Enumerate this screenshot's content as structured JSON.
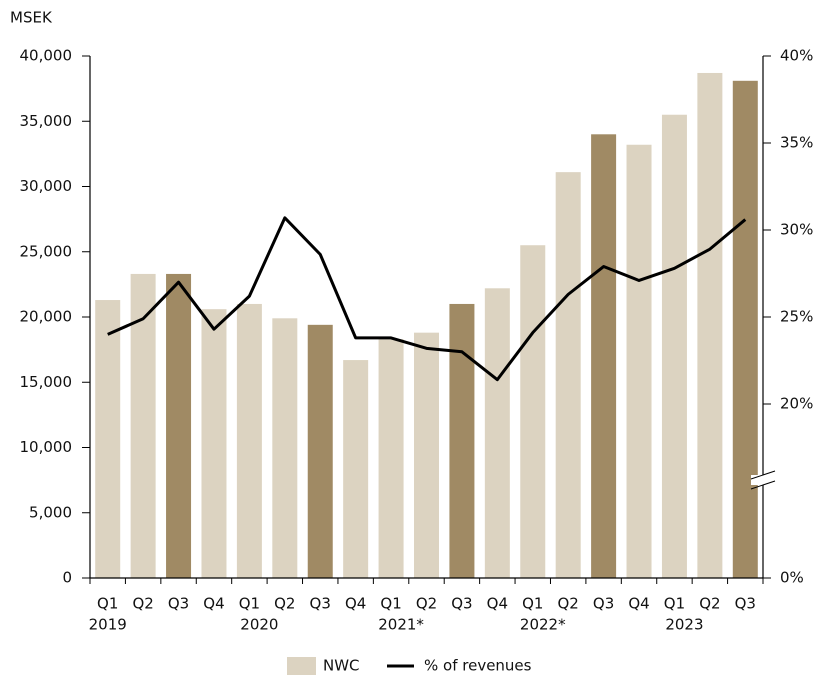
{
  "chart_data": {
    "type": "bar_line",
    "y_unit_label": "MSEK",
    "categories": [
      "Q1",
      "Q2",
      "Q3",
      "Q4",
      "Q1",
      "Q2",
      "Q3",
      "Q4",
      "Q1",
      "Q2",
      "Q3",
      "Q4",
      "Q1",
      "Q2",
      "Q3",
      "Q4",
      "Q1",
      "Q2",
      "Q3"
    ],
    "years": [
      "2019",
      null,
      null,
      null,
      "2020",
      null,
      null,
      null,
      "2021*",
      null,
      null,
      null,
      "2022*",
      null,
      null,
      null,
      "2023",
      null,
      null
    ],
    "series": [
      {
        "name": "NWC",
        "type": "bar",
        "color": "#dcd3c1",
        "colors": [
          "#dcd3c1",
          "#dcd3c1",
          "#a08a64",
          "#dcd3c1",
          "#dcd3c1",
          "#dcd3c1",
          "#a08a64",
          "#dcd3c1",
          "#dcd3c1",
          "#dcd3c1",
          "#a08a64",
          "#dcd3c1",
          "#dcd3c1",
          "#dcd3c1",
          "#a08a64",
          "#dcd3c1",
          "#dcd3c1",
          "#dcd3c1",
          "#a08a64"
        ],
        "values": [
          21300,
          23300,
          23300,
          20600,
          21000,
          19900,
          19400,
          16700,
          18300,
          18800,
          21000,
          22200,
          25500,
          31100,
          34000,
          33200,
          35500,
          38700,
          38100
        ]
      },
      {
        "name": "% of revenues",
        "type": "line",
        "color": "#000000",
        "axis": "y2",
        "values": [
          24.0,
          24.9,
          27.0,
          24.3,
          26.2,
          30.7,
          28.6,
          23.8,
          23.8,
          23.2,
          23.0,
          21.4,
          24.1,
          26.3,
          27.9,
          27.1,
          27.8,
          28.9,
          30.6
        ]
      }
    ],
    "ylim": [
      0,
      40000
    ],
    "yticks": [
      {
        "value": 0,
        "label": "0"
      },
      {
        "value": 5000,
        "label": "5,000"
      },
      {
        "value": 10000,
        "label": "10,000"
      },
      {
        "value": 15000,
        "label": "15,000"
      },
      {
        "value": 20000,
        "label": "20,000"
      },
      {
        "value": 25000,
        "label": "25,000"
      },
      {
        "value": 30000,
        "label": "30,000"
      },
      {
        "value": 35000,
        "label": "35,000"
      },
      {
        "value": 40000,
        "label": "40,000"
      }
    ],
    "y2lim": [
      0,
      40
    ],
    "y2_break": 15,
    "y2ticks": [
      {
        "value": 0,
        "label": "0%"
      },
      {
        "value": 20,
        "label": "20%"
      },
      {
        "value": 25,
        "label": "25%"
      },
      {
        "value": 30,
        "label": "30%"
      },
      {
        "value": 35,
        "label": "35%"
      },
      {
        "value": 40,
        "label": "40%"
      }
    ]
  }
}
